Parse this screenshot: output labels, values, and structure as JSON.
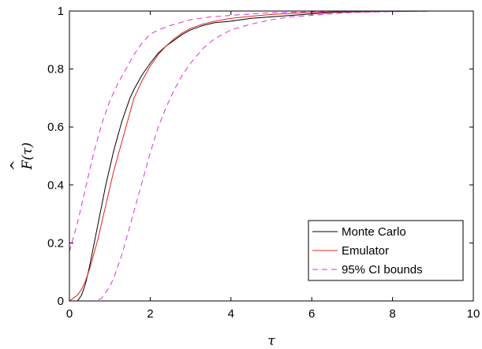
{
  "chart_data": {
    "type": "line",
    "xlabel": "τ",
    "ylabel": "F(τ)",
    "xlim": [
      0,
      10
    ],
    "ylim": [
      0,
      1
    ],
    "xticks": [
      "0",
      "2",
      "4",
      "6",
      "8",
      "10"
    ],
    "yticks": [
      "0",
      "0.2",
      "0.4",
      "0.6",
      "0.8",
      "1"
    ],
    "grid": false,
    "legend_position": "bottom-right",
    "series": [
      {
        "name": "Monte Carlo",
        "color": "#000000",
        "dash": "solid",
        "x": [
          0,
          0.2,
          0.3,
          0.4,
          0.5,
          0.6,
          0.7,
          0.8,
          0.9,
          1.0,
          1.1,
          1.2,
          1.3,
          1.4,
          1.5,
          1.6,
          1.8,
          2.0,
          2.2,
          2.4,
          2.6,
          2.8,
          3.0,
          3.3,
          3.6,
          4.0,
          4.5,
          5.0,
          5.5,
          6.0,
          6.5,
          7.0,
          8.0,
          9.0,
          10.0
        ],
        "y": [
          0,
          0,
          0.02,
          0.06,
          0.12,
          0.19,
          0.26,
          0.33,
          0.4,
          0.46,
          0.52,
          0.57,
          0.62,
          0.66,
          0.7,
          0.73,
          0.78,
          0.82,
          0.855,
          0.88,
          0.9,
          0.92,
          0.935,
          0.95,
          0.96,
          0.965,
          0.975,
          0.98,
          0.985,
          0.99,
          0.995,
          0.997,
          0.999,
          1.0,
          1.0
        ]
      },
      {
        "name": "Emulator",
        "color": "#e0241b",
        "dash": "solid",
        "x": [
          0,
          0.1,
          0.2,
          0.3,
          0.4,
          0.5,
          0.6,
          0.7,
          0.8,
          0.9,
          1.0,
          1.1,
          1.2,
          1.3,
          1.4,
          1.5,
          1.6,
          1.8,
          2.0,
          2.2,
          2.4,
          2.6,
          2.8,
          3.0,
          3.3,
          3.6,
          4.0,
          4.5,
          5.0,
          5.5,
          6.0,
          6.5,
          7.0,
          8.0,
          9.0,
          10.0
        ],
        "y": [
          0,
          0.01,
          0.02,
          0.04,
          0.07,
          0.11,
          0.16,
          0.21,
          0.27,
          0.33,
          0.39,
          0.45,
          0.5,
          0.55,
          0.6,
          0.65,
          0.7,
          0.76,
          0.81,
          0.85,
          0.88,
          0.905,
          0.925,
          0.94,
          0.955,
          0.965,
          0.975,
          0.982,
          0.988,
          0.992,
          0.995,
          0.997,
          0.998,
          0.999,
          1.0,
          1.0
        ]
      },
      {
        "name": "95% CI bounds",
        "color": "#e030e0",
        "dash": "dashed",
        "x": [
          0,
          0.1,
          0.2,
          0.3,
          0.4,
          0.5,
          0.6,
          0.8,
          1.0,
          1.2,
          1.4,
          1.6,
          1.8,
          2.0,
          2.2,
          2.5,
          3.0,
          3.5,
          4.0,
          4.5,
          5.0,
          5.5,
          6.0,
          7.0,
          8.0,
          9.0,
          10.0
        ],
        "y": [
          0.17,
          0.22,
          0.27,
          0.33,
          0.39,
          0.45,
          0.51,
          0.61,
          0.69,
          0.75,
          0.8,
          0.85,
          0.89,
          0.92,
          0.935,
          0.95,
          0.97,
          0.98,
          0.985,
          0.99,
          0.994,
          0.996,
          0.997,
          0.999,
          1.0,
          1.0,
          1.0
        ]
      },
      {
        "name": "",
        "color": "#e030e0",
        "dash": "dashed",
        "x": [
          0.5,
          0.6,
          0.7,
          0.8,
          0.9,
          1.0,
          1.1,
          1.2,
          1.3,
          1.4,
          1.5,
          1.6,
          1.8,
          2.0,
          2.2,
          2.4,
          2.6,
          2.8,
          3.0,
          3.3,
          3.6,
          4.0,
          4.5,
          5.0,
          5.5,
          6.0,
          6.5,
          7.0,
          8.0,
          9.0,
          10.0
        ],
        "y": [
          0,
          0,
          0.002,
          0.01,
          0.03,
          0.05,
          0.08,
          0.12,
          0.16,
          0.21,
          0.26,
          0.31,
          0.41,
          0.51,
          0.6,
          0.67,
          0.73,
          0.78,
          0.82,
          0.87,
          0.905,
          0.935,
          0.955,
          0.97,
          0.98,
          0.985,
          0.99,
          0.995,
          0.998,
          1.0,
          1.0
        ]
      }
    ]
  }
}
